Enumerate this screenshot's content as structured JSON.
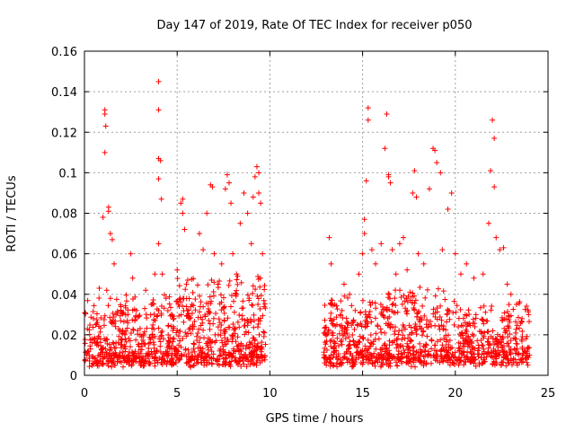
{
  "chart_data": {
    "type": "scatter",
    "title": "Day 147 of 2019, Rate Of TEC Index for receiver p050",
    "xlabel": "GPS time / hours",
    "ylabel": "ROTI / TECUs",
    "xlim": [
      0,
      25
    ],
    "ylim": [
      0,
      0.16
    ],
    "x_ticks": [
      0,
      5,
      10,
      15,
      20,
      25
    ],
    "x_tick_labels": [
      "0",
      "5",
      "10",
      "15",
      "20",
      "25"
    ],
    "y_ticks": [
      0,
      0.02,
      0.04,
      0.06,
      0.08,
      0.1,
      0.12,
      0.14,
      0.16
    ],
    "y_tick_labels": [
      "0",
      "0.02",
      "0.04",
      "0.06",
      "0.08",
      "0.1",
      "0.12",
      "0.14",
      "0.16"
    ],
    "grid": true,
    "marker": "+",
    "marker_color": "#ff0000",
    "data_gap_hours": [
      9.8,
      12.9
    ],
    "series": [
      {
        "name": "ROTI",
        "points": [
          [
            0.2,
            0.012
          ],
          [
            0.4,
            0.018
          ],
          [
            0.6,
            0.025
          ],
          [
            0.8,
            0.043
          ],
          [
            1.0,
            0.078
          ],
          [
            1.1,
            0.131
          ],
          [
            1.1,
            0.129
          ],
          [
            1.15,
            0.123
          ],
          [
            1.1,
            0.11
          ],
          [
            1.3,
            0.083
          ],
          [
            1.3,
            0.081
          ],
          [
            1.4,
            0.07
          ],
          [
            1.5,
            0.067
          ],
          [
            1.6,
            0.055
          ],
          [
            1.2,
            0.042
          ],
          [
            1.4,
            0.038
          ],
          [
            1.7,
            0.03
          ],
          [
            1.9,
            0.022
          ],
          [
            2.2,
            0.018
          ],
          [
            2.5,
            0.06
          ],
          [
            2.6,
            0.048
          ],
          [
            2.8,
            0.032
          ],
          [
            3.0,
            0.02
          ],
          [
            3.3,
            0.042
          ],
          [
            3.6,
            0.035
          ],
          [
            3.8,
            0.05
          ],
          [
            4.0,
            0.145
          ],
          [
            4.0,
            0.131
          ],
          [
            4.0,
            0.107
          ],
          [
            4.1,
            0.106
          ],
          [
            4.0,
            0.097
          ],
          [
            4.15,
            0.087
          ],
          [
            4.0,
            0.065
          ],
          [
            4.2,
            0.05
          ],
          [
            4.4,
            0.038
          ],
          [
            4.7,
            0.03
          ],
          [
            5.0,
            0.052
          ],
          [
            5.2,
            0.085
          ],
          [
            5.3,
            0.087
          ],
          [
            5.3,
            0.08
          ],
          [
            5.4,
            0.072
          ],
          [
            5.5,
            0.045
          ],
          [
            5.8,
            0.035
          ],
          [
            6.2,
            0.07
          ],
          [
            6.4,
            0.062
          ],
          [
            6.6,
            0.08
          ],
          [
            6.8,
            0.094
          ],
          [
            6.9,
            0.093
          ],
          [
            7.0,
            0.06
          ],
          [
            7.2,
            0.045
          ],
          [
            7.4,
            0.055
          ],
          [
            7.6,
            0.092
          ],
          [
            7.7,
            0.099
          ],
          [
            7.8,
            0.095
          ],
          [
            7.9,
            0.085
          ],
          [
            8.0,
            0.06
          ],
          [
            8.2,
            0.05
          ],
          [
            8.4,
            0.075
          ],
          [
            8.6,
            0.09
          ],
          [
            8.8,
            0.08
          ],
          [
            9.0,
            0.065
          ],
          [
            9.1,
            0.088
          ],
          [
            9.2,
            0.098
          ],
          [
            9.3,
            0.103
          ],
          [
            9.4,
            0.1
          ],
          [
            9.4,
            0.09
          ],
          [
            9.5,
            0.085
          ],
          [
            9.6,
            0.06
          ],
          [
            13.2,
            0.068
          ],
          [
            13.3,
            0.055
          ],
          [
            13.5,
            0.035
          ],
          [
            13.8,
            0.03
          ],
          [
            14.0,
            0.045
          ],
          [
            14.3,
            0.04
          ],
          [
            14.6,
            0.032
          ],
          [
            14.8,
            0.05
          ],
          [
            15.0,
            0.06
          ],
          [
            15.1,
            0.07
          ],
          [
            15.1,
            0.077
          ],
          [
            15.2,
            0.096
          ],
          [
            15.3,
            0.126
          ],
          [
            15.3,
            0.132
          ],
          [
            15.5,
            0.062
          ],
          [
            15.7,
            0.055
          ],
          [
            16.0,
            0.065
          ],
          [
            16.2,
            0.112
          ],
          [
            16.3,
            0.129
          ],
          [
            16.4,
            0.099
          ],
          [
            16.4,
            0.098
          ],
          [
            16.5,
            0.095
          ],
          [
            16.6,
            0.062
          ],
          [
            16.8,
            0.05
          ],
          [
            17.0,
            0.065
          ],
          [
            17.2,
            0.068
          ],
          [
            17.4,
            0.052
          ],
          [
            17.7,
            0.09
          ],
          [
            17.8,
            0.101
          ],
          [
            17.9,
            0.088
          ],
          [
            18.0,
            0.06
          ],
          [
            18.3,
            0.055
          ],
          [
            18.6,
            0.092
          ],
          [
            18.8,
            0.112
          ],
          [
            18.9,
            0.111
          ],
          [
            19.0,
            0.105
          ],
          [
            19.2,
            0.1
          ],
          [
            19.3,
            0.062
          ],
          [
            19.6,
            0.082
          ],
          [
            19.8,
            0.09
          ],
          [
            20.0,
            0.06
          ],
          [
            20.3,
            0.05
          ],
          [
            20.6,
            0.055
          ],
          [
            21.0,
            0.048
          ],
          [
            21.5,
            0.05
          ],
          [
            21.8,
            0.075
          ],
          [
            21.9,
            0.101
          ],
          [
            22.0,
            0.126
          ],
          [
            22.1,
            0.117
          ],
          [
            22.1,
            0.093
          ],
          [
            22.2,
            0.068
          ],
          [
            22.4,
            0.062
          ],
          [
            22.6,
            0.063
          ],
          [
            22.8,
            0.045
          ],
          [
            23.0,
            0.04
          ],
          [
            23.3,
            0.035
          ],
          [
            23.6,
            0.028
          ],
          [
            23.8,
            0.018
          ],
          [
            24.0,
            0.01
          ]
        ]
      }
    ]
  }
}
